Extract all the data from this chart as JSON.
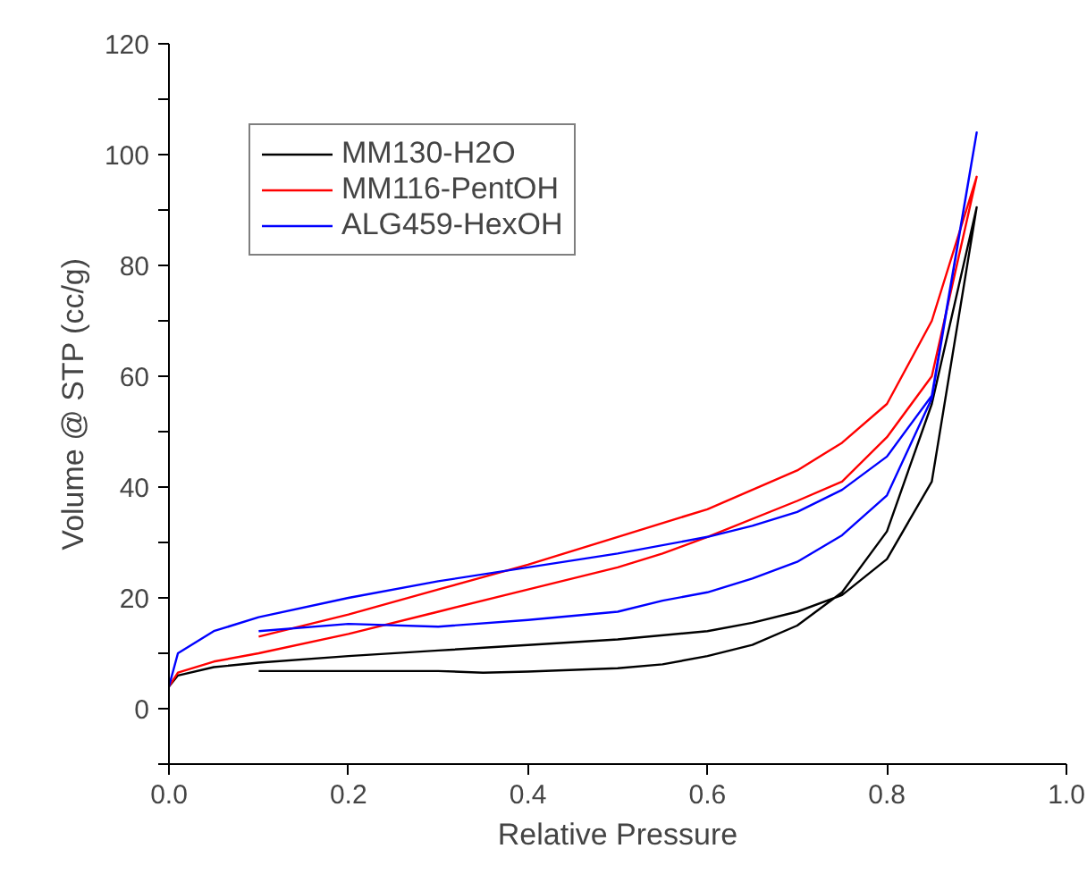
{
  "chart_data": {
    "type": "line",
    "xlabel": "Relative Pressure",
    "ylabel": "Volume @ STP (cc/g)",
    "xlim": [
      0,
      1
    ],
    "xticks": [
      {
        "value": 0,
        "label": "0.0"
      },
      0.2,
      0.4,
      0.6,
      0.8,
      {
        "value": 1,
        "label": "1.0"
      }
    ],
    "ylim": [
      -10,
      120
    ],
    "yticks": [
      {
        "value": -10,
        "label": null
      },
      0,
      {
        "value": 10,
        "label": null
      },
      20,
      {
        "value": 30,
        "label": null
      },
      40,
      {
        "value": 50,
        "label": null
      },
      60,
      {
        "value": 70,
        "label": null
      },
      80,
      {
        "value": 90,
        "label": null
      },
      100,
      {
        "value": 110,
        "label": null
      },
      120
    ],
    "grid": false,
    "legend": "top left",
    "marker": "none",
    "line_style": "solid",
    "series": [
      {
        "name": "MM130-H2O",
        "color": "#000000",
        "x": [
          0,
          0.01,
          0.05,
          0.1,
          0.2,
          0.3,
          0.4,
          0.5,
          0.6,
          0.65,
          0.7,
          0.75,
          0.8,
          0.85,
          0.9,
          0.85,
          0.8,
          0.75,
          0.7,
          0.65,
          0.6,
          0.55,
          0.5,
          0.4,
          0.35,
          0.3,
          0.2,
          0.1
        ],
        "values": [
          4,
          6,
          7.5,
          8.3,
          9.5,
          10.5,
          11.5,
          12.5,
          14,
          15.5,
          17.5,
          20.5,
          27,
          41,
          90.5,
          55,
          32,
          21,
          15,
          11.5,
          9.5,
          8,
          7.3,
          6.7,
          6.5,
          6.8,
          6.8,
          6.8
        ]
      },
      {
        "name": "MM116-PentOH",
        "color": "#ff0000",
        "x": [
          0,
          0.01,
          0.05,
          0.1,
          0.2,
          0.3,
          0.4,
          0.5,
          0.55,
          0.6,
          0.7,
          0.75,
          0.8,
          0.85,
          0.9,
          0.85,
          0.8,
          0.75,
          0.7,
          0.6,
          0.5,
          0.4,
          0.3,
          0.2,
          0.1
        ],
        "values": [
          4,
          6.5,
          8.5,
          10,
          13.5,
          17.5,
          21.5,
          25.5,
          28,
          31,
          37.5,
          41,
          49,
          60,
          96,
          70,
          55,
          48,
          43,
          36,
          31,
          26,
          21.5,
          17,
          13
        ]
      },
      {
        "name": "ALG459-HexOH",
        "color": "#0000ff",
        "x": [
          0,
          0.01,
          0.05,
          0.1,
          0.2,
          0.3,
          0.4,
          0.5,
          0.6,
          0.65,
          0.7,
          0.75,
          0.8,
          0.85,
          0.9,
          0.85,
          0.8,
          0.75,
          0.7,
          0.65,
          0.6,
          0.55,
          0.5,
          0.4,
          0.3,
          0.2,
          0.1
        ],
        "values": [
          4,
          10,
          14,
          16.5,
          20,
          23,
          25.5,
          28,
          31,
          33,
          35.5,
          39.5,
          45.5,
          56.5,
          104,
          56,
          38.5,
          31.3,
          26.5,
          23.5,
          21,
          19.5,
          17.5,
          16,
          14.8,
          15.3,
          14
        ]
      }
    ]
  }
}
